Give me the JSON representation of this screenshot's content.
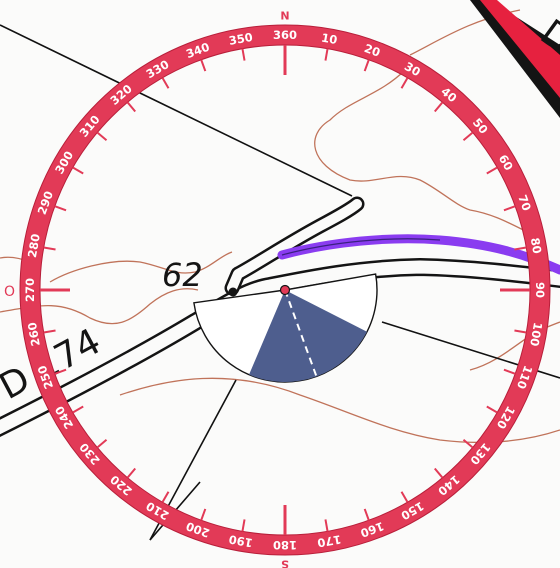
{
  "map": {
    "road_label": "D 174",
    "spot_height": "62",
    "partial_label": "D",
    "edge_mark": "O"
  },
  "compass": {
    "cardinals": [
      "N",
      "S"
    ],
    "degrees": [
      "360",
      "10",
      "20",
      "30",
      "40",
      "50",
      "60",
      "70",
      "80",
      "90",
      "100",
      "110",
      "120",
      "130",
      "140",
      "150",
      "160",
      "170",
      "180",
      "190",
      "200",
      "210",
      "220",
      "230",
      "240",
      "250",
      "260",
      "270",
      "280",
      "290",
      "300",
      "310",
      "320",
      "330",
      "340",
      "350"
    ],
    "sector_from_deg": 157,
    "sector_to_deg": 253,
    "bearing_deg": 190,
    "colors": {
      "ring": "#e23a57",
      "sector": "#4e5e8e",
      "route": "#8a3cf0",
      "contour": "#c0735a"
    }
  }
}
